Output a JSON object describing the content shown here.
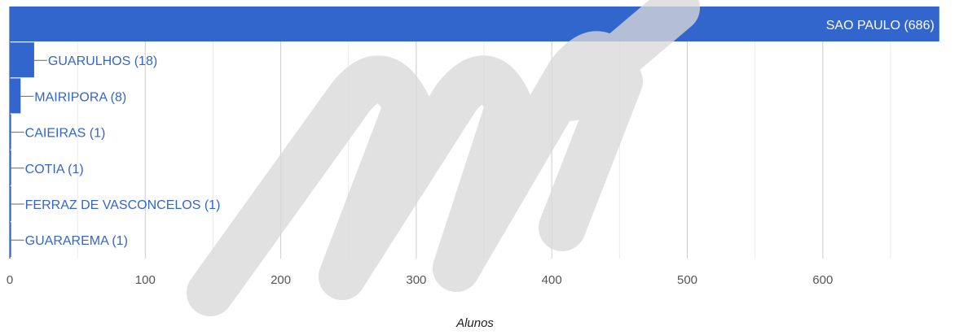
{
  "chart_data": {
    "type": "bar",
    "orientation": "horizontal",
    "categories": [
      "SAO PAULO",
      "GUARULHOS",
      "MAIRIPORA",
      "CAIEIRAS",
      "COTIA",
      "FERRAZ DE VASCONCELOS",
      "GUARAREMA"
    ],
    "values": [
      686,
      18,
      8,
      1,
      1,
      1,
      1
    ],
    "data_labels": [
      "SAO PAULO (686)",
      "GUARULHOS (18)",
      "MAIRIPORA (8)",
      "CAIEIRAS (1)",
      "COTIA (1)",
      "FERRAZ DE VASCONCELOS (1)",
      "GUARAREMA (1)"
    ],
    "xlabel": "Alunos",
    "ylabel": "",
    "xlim": [
      0,
      690
    ],
    "xticks": [
      0,
      100,
      200,
      300,
      400,
      500,
      600
    ],
    "xtick_labels": [
      "0",
      "100",
      "200",
      "300",
      "400",
      "500",
      "600"
    ],
    "minor_gridlines": true,
    "grid": true
  },
  "colors": {
    "bar": "#3366cc",
    "label_outside": "#3366cc",
    "label_inside": "#ffffff",
    "grid_major": "#cccccc",
    "grid_minor": "#ebebeb",
    "watermark": "#d9d9d9"
  }
}
